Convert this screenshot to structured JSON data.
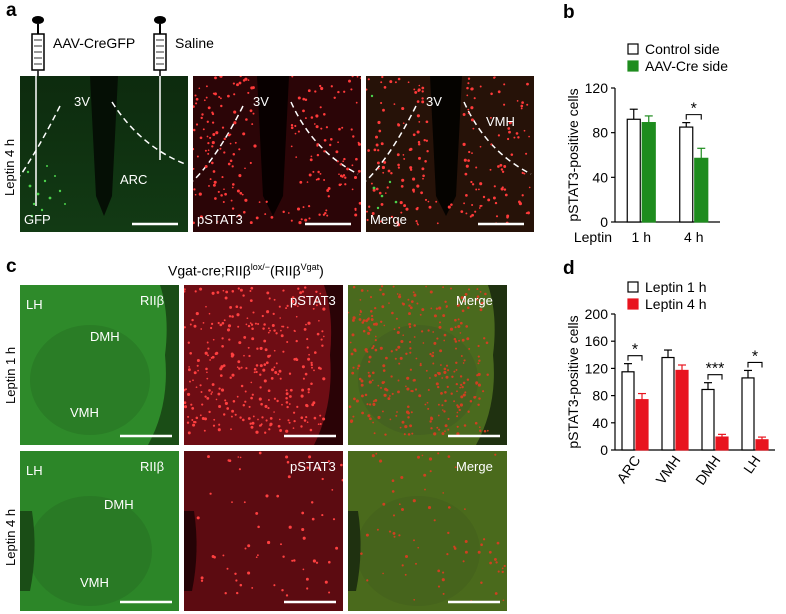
{
  "panels": {
    "a": "a",
    "b": "b",
    "c": "c",
    "d": "d"
  },
  "panel_a": {
    "injection_left": "AAV-CreGFP",
    "injection_right": "Saline",
    "row_label": "Leptin 4 h",
    "images": [
      {
        "corner": "GFP",
        "labels": [
          "3V",
          "ARC"
        ]
      },
      {
        "corner": "pSTAT3",
        "labels": [
          "3V"
        ]
      },
      {
        "corner": "Merge",
        "labels": [
          "3V",
          "VMH"
        ]
      }
    ]
  },
  "panel_c": {
    "title_main": "Vgat-cre;RIIβ",
    "title_sup1": "lox/−",
    "title_mid": "(RIIβ",
    "title_sup2": "Vgat",
    "title_end": ")",
    "rows": [
      {
        "label": "Leptin 1 h"
      },
      {
        "label": "Leptin 4 h"
      }
    ],
    "columns": [
      "RIIβ",
      "pSTAT3",
      "Merge"
    ],
    "region_labels": [
      "LH",
      "DMH",
      "VMH"
    ]
  },
  "colors": {
    "green": "#1e8c1e",
    "red": "#e8141e",
    "green_tissue": "#2f7a2a",
    "red_tissue": "#7a0c12"
  },
  "chart_data": [
    {
      "type": "bar",
      "ylabel": "pSTAT3-positive cells",
      "xlabel": "Leptin",
      "categories": [
        "1 h",
        "4 h"
      ],
      "ylim": [
        0,
        120
      ],
      "yticks": [
        0,
        40,
        80,
        120
      ],
      "series": [
        {
          "name": "Control side",
          "values": [
            92,
            85
          ],
          "errors": [
            9,
            4
          ]
        },
        {
          "name": "AAV-Cre side",
          "values": [
            89,
            57
          ],
          "errors": [
            6,
            9
          ]
        }
      ],
      "significance": [
        {
          "category": "4 h",
          "label": "*"
        }
      ],
      "legend": "top"
    },
    {
      "type": "bar",
      "ylabel": "pSTAT3-positive cells",
      "categories": [
        "ARC",
        "VMH",
        "DMH",
        "LH"
      ],
      "ylim": [
        0,
        200
      ],
      "yticks": [
        0,
        40,
        80,
        120,
        160,
        200
      ],
      "series": [
        {
          "name": "Leptin 1 h",
          "values": [
            115,
            136,
            89,
            106
          ],
          "errors": [
            12,
            11,
            10,
            11
          ]
        },
        {
          "name": "Leptin 4 h",
          "values": [
            74,
            117,
            19,
            15
          ],
          "errors": [
            9,
            8,
            4,
            4
          ]
        }
      ],
      "significance": [
        {
          "category": "ARC",
          "label": "*"
        },
        {
          "category": "DMH",
          "label": "***"
        },
        {
          "category": "LH",
          "label": "*"
        }
      ],
      "legend": "top"
    }
  ]
}
